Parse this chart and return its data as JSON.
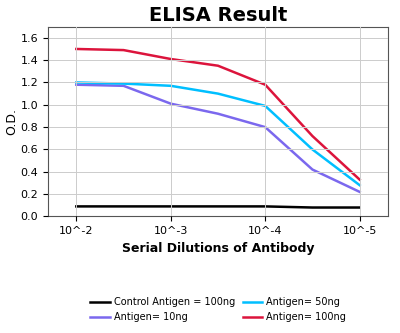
{
  "title": "ELISA Result",
  "ylabel": "O.D.",
  "xlabel": "Serial Dilutions of Antibody",
  "x_ticks_labels": [
    "10^-2",
    "10^-3",
    "10^-4",
    "10^-5"
  ],
  "x_ticks_positions": [
    -2,
    -3,
    -4,
    -5
  ],
  "xlim": [
    -1.7,
    -5.3
  ],
  "ylim": [
    0,
    1.7
  ],
  "yticks": [
    0,
    0.2,
    0.4,
    0.6,
    0.8,
    1.0,
    1.2,
    1.4,
    1.6
  ],
  "lines": {
    "control": {
      "label": "Control Antigen = 100ng",
      "color": "#000000",
      "x": [
        -2,
        -2.5,
        -3,
        -3.5,
        -4,
        -4.5,
        -5
      ],
      "y": [
        0.09,
        0.09,
        0.09,
        0.09,
        0.09,
        0.08,
        0.08
      ]
    },
    "antigen_10ng": {
      "label": "Antigen= 10ng",
      "color": "#7B68EE",
      "x": [
        -2,
        -2.5,
        -3,
        -3.5,
        -4,
        -4.5,
        -5
      ],
      "y": [
        1.18,
        1.17,
        1.01,
        0.92,
        0.8,
        0.42,
        0.22
      ]
    },
    "antigen_50ng": {
      "label": "Antigen= 50ng",
      "color": "#00BFFF",
      "x": [
        -2,
        -2.5,
        -3,
        -3.5,
        -4,
        -4.5,
        -5
      ],
      "y": [
        1.2,
        1.19,
        1.17,
        1.1,
        0.99,
        0.6,
        0.28
      ]
    },
    "antigen_100ng": {
      "label": "Antigen= 100ng",
      "color": "#DC143C",
      "x": [
        -2,
        -2.5,
        -3,
        -3.5,
        -4,
        -4.5,
        -5
      ],
      "y": [
        1.5,
        1.49,
        1.41,
        1.35,
        1.18,
        0.72,
        0.33
      ]
    }
  },
  "legend_items": [
    {
      "label": "Control Antigen = 100ng",
      "color": "#000000"
    },
    {
      "label": "Antigen= 10ng",
      "color": "#7B68EE"
    },
    {
      "label": "Antigen= 50ng",
      "color": "#00BFFF"
    },
    {
      "label": "Antigen= 100ng",
      "color": "#DC143C"
    }
  ],
  "background_color": "#ffffff",
  "grid_color": "#cccccc",
  "title_fontsize": 14,
  "label_fontsize": 9,
  "tick_fontsize": 8
}
